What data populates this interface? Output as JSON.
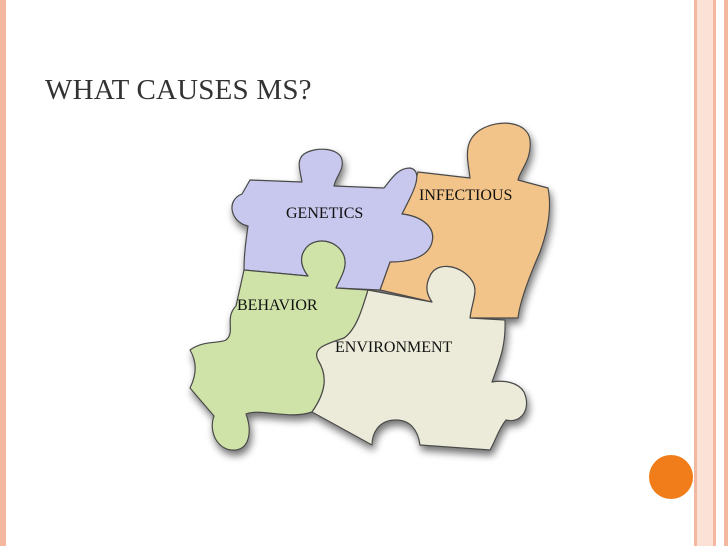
{
  "slide": {
    "title": "WHAT CAUSES MS?"
  },
  "puzzle": {
    "pieces": [
      {
        "id": "genetics",
        "label": "GENETICS",
        "color": "#c8c8ee"
      },
      {
        "id": "infectious",
        "label": "INFECTIOUS",
        "color": "#f3c489"
      },
      {
        "id": "behavior",
        "label": "BEHAVIOR",
        "color": "#cfe3a8"
      },
      {
        "id": "environment",
        "label": "ENVIRONMENT",
        "color": "#ecebd9"
      }
    ]
  },
  "colors": {
    "border": "#f4b8a0",
    "band": "#fbe1d6",
    "accent_dot": "#f07d1a"
  }
}
